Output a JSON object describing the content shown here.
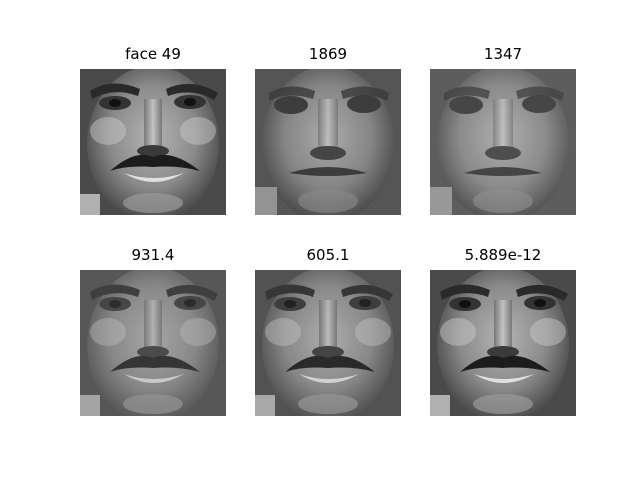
{
  "panels": [
    {
      "title": "face 49"
    },
    {
      "title": "1869"
    },
    {
      "title": "1347"
    },
    {
      "title": "931.4"
    },
    {
      "title": "605.1"
    },
    {
      "title": "5.889e-12"
    }
  ]
}
